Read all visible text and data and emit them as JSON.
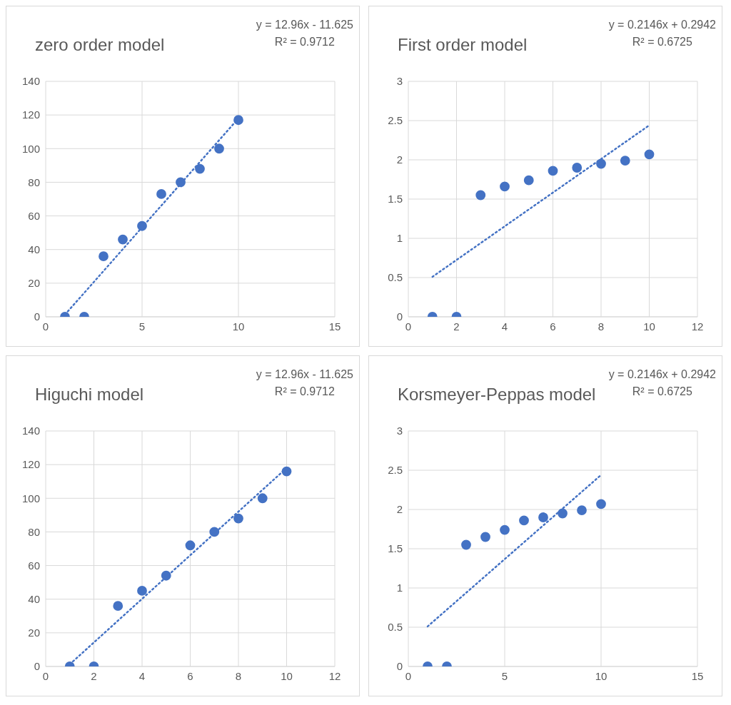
{
  "chart_data": [
    {
      "type": "scatter",
      "title": "zero order model",
      "annotations": [
        "y = 12.96x - 11.625",
        "R² = 0.9712"
      ],
      "grid": true,
      "xlim": [
        0,
        15
      ],
      "xticks": [
        0,
        5,
        10,
        15
      ],
      "ylim": [
        0,
        140
      ],
      "yticks": [
        0,
        20,
        40,
        60,
        80,
        100,
        120,
        140
      ],
      "series": [
        {
          "color": "#4472c4",
          "marker": "circle",
          "x": [
            1,
            2,
            3,
            4,
            5,
            6,
            7,
            8,
            9,
            10
          ],
          "values": [
            0,
            0,
            36,
            46,
            54,
            73,
            80,
            88,
            100,
            117
          ]
        },
        {
          "type": "line",
          "color": "#4472c4",
          "line_style": "dotted",
          "x": [
            1,
            10
          ],
          "values": [
            1.3,
            118
          ]
        }
      ]
    },
    {
      "type": "scatter",
      "title": "First order model",
      "annotations": [
        "y = 0.2146x + 0.2942",
        "R² = 0.6725"
      ],
      "grid": true,
      "xlim": [
        0,
        12
      ],
      "xticks": [
        0,
        2,
        4,
        6,
        8,
        10,
        12
      ],
      "ylim": [
        0,
        3
      ],
      "yticks": [
        0,
        0.5,
        1,
        1.5,
        2,
        2.5,
        3
      ],
      "series": [
        {
          "color": "#4472c4",
          "marker": "circle",
          "x": [
            1,
            2,
            3,
            4,
            5,
            6,
            7,
            8,
            9,
            10
          ],
          "values": [
            0,
            0,
            1.55,
            1.66,
            1.74,
            1.86,
            1.9,
            1.95,
            1.99,
            2.07
          ]
        },
        {
          "type": "line",
          "color": "#4472c4",
          "line_style": "dotted",
          "x": [
            1,
            10
          ],
          "values": [
            0.51,
            2.44
          ]
        }
      ]
    },
    {
      "type": "scatter",
      "title": "Higuchi model",
      "annotations": [
        "y = 12.96x - 11.625",
        "R² = 0.9712"
      ],
      "grid": true,
      "xlim": [
        0,
        12
      ],
      "xticks": [
        0,
        2,
        4,
        6,
        8,
        10,
        12
      ],
      "ylim": [
        0,
        140
      ],
      "yticks": [
        0,
        20,
        40,
        60,
        80,
        100,
        120,
        140
      ],
      "series": [
        {
          "color": "#4472c4",
          "marker": "circle",
          "x": [
            1,
            2,
            3,
            4,
            5,
            6,
            7,
            8,
            9,
            10
          ],
          "values": [
            0,
            0,
            36,
            45,
            54,
            72,
            80,
            88,
            100,
            116
          ]
        },
        {
          "type": "line",
          "color": "#4472c4",
          "line_style": "dotted",
          "x": [
            1,
            10
          ],
          "values": [
            1.3,
            118
          ]
        }
      ]
    },
    {
      "type": "scatter",
      "title": "Korsmeyer-Peppas model",
      "annotations": [
        "y = 0.2146x + 0.2942",
        "R² = 0.6725"
      ],
      "grid": true,
      "xlim": [
        0,
        15
      ],
      "xticks": [
        0,
        5,
        10,
        15
      ],
      "ylim": [
        0,
        3
      ],
      "yticks": [
        0,
        0.5,
        1,
        1.5,
        2,
        2.5,
        3
      ],
      "series": [
        {
          "color": "#4472c4",
          "marker": "circle",
          "x": [
            1,
            2,
            3,
            4,
            5,
            6,
            7,
            8,
            9,
            10
          ],
          "values": [
            0,
            0,
            1.55,
            1.65,
            1.74,
            1.86,
            1.9,
            1.95,
            1.99,
            2.07
          ]
        },
        {
          "type": "line",
          "color": "#4472c4",
          "line_style": "dotted",
          "x": [
            1,
            10
          ],
          "values": [
            0.51,
            2.44
          ]
        }
      ]
    }
  ]
}
